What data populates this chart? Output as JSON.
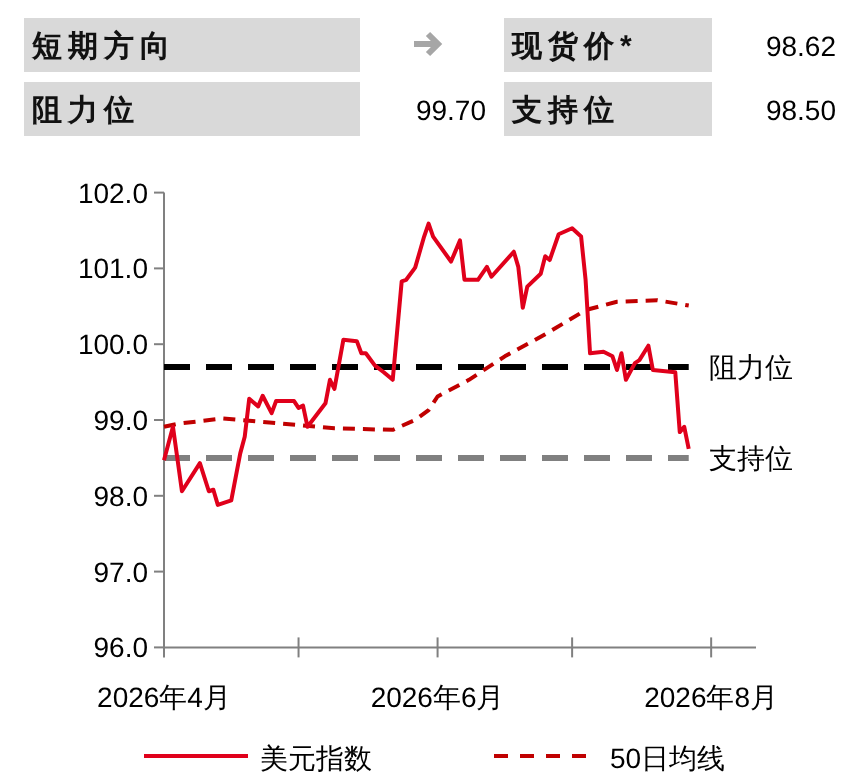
{
  "chart_data": [
    {
      "type": "other",
      "annotations": [
        "短期方向",
        "现货价*",
        "98.62",
        "阻力位",
        "99.70",
        "支持位",
        "98.50"
      ]
    },
    {
      "type": "line",
      "xlim": [
        "2026-04-01",
        "2026-08-11"
      ],
      "ylim": [
        96,
        102
      ],
      "yticks": [
        {
          "value": 96,
          "label": "96.0"
        },
        {
          "value": 97,
          "label": "97.0"
        },
        {
          "value": 98,
          "label": "98.0"
        },
        {
          "value": 99,
          "label": "99.0"
        },
        {
          "value": 100,
          "label": "100.0"
        },
        {
          "value": 101,
          "label": "101.0"
        },
        {
          "value": 102,
          "label": "102.0"
        }
      ],
      "xticks": [
        {
          "value": "2026-04-01",
          "label": "2026年4月"
        },
        {
          "value": "2026-05-01",
          "label": null
        },
        {
          "value": "2026-06-01",
          "label": "2026年6月"
        },
        {
          "value": "2026-07-01",
          "label": null
        },
        {
          "value": "2026-08-01",
          "label": "2026年8月"
        }
      ],
      "grid": false,
      "legend": "bottom",
      "ref_lines": [
        {
          "axis": "y",
          "value": 99.7,
          "label": "阻力位",
          "color": "#000000",
          "line_style": "dashed"
        },
        {
          "axis": "y",
          "value": 98.5,
          "label": "支持位",
          "color": "#808080",
          "line_style": "dashed"
        }
      ],
      "series": [
        {
          "name": "美元指数",
          "color": "#e0001b",
          "line_style": "solid",
          "x": [
            "2026-04-01",
            "2026-04-03",
            "2026-04-05",
            "2026-04-09",
            "2026-04-11",
            "2026-04-12",
            "2026-04-13",
            "2026-04-16",
            "2026-04-18",
            "2026-04-19",
            "2026-04-20",
            "2026-04-22",
            "2026-04-23",
            "2026-04-25",
            "2026-04-26",
            "2026-04-30",
            "2026-05-01",
            "2026-05-02",
            "2026-05-03",
            "2026-05-07",
            "2026-05-08",
            "2026-05-09",
            "2026-05-11",
            "2026-05-14",
            "2026-05-15",
            "2026-05-16",
            "2026-05-18",
            "2026-05-20",
            "2026-05-22",
            "2026-05-24",
            "2026-05-25",
            "2026-05-27",
            "2026-05-29",
            "2026-05-30",
            "2026-05-31",
            "2026-06-04",
            "2026-06-06",
            "2026-06-07",
            "2026-06-10",
            "2026-06-12",
            "2026-06-13",
            "2026-06-18",
            "2026-06-19",
            "2026-06-20",
            "2026-06-21",
            "2026-06-24",
            "2026-06-25",
            "2026-06-26",
            "2026-06-28",
            "2026-07-01",
            "2026-07-03",
            "2026-07-04",
            "2026-07-05",
            "2026-07-08",
            "2026-07-10",
            "2026-07-11",
            "2026-07-12",
            "2026-07-13",
            "2026-07-15",
            "2026-07-16",
            "2026-07-18",
            "2026-07-19",
            "2026-07-24",
            "2026-07-25",
            "2026-07-26",
            "2026-07-27"
          ],
          "values": [
            98.47,
            98.91,
            98.06,
            98.43,
            98.06,
            98.08,
            97.88,
            97.94,
            98.56,
            98.78,
            99.28,
            99.18,
            99.32,
            99.09,
            99.25,
            99.25,
            99.16,
            99.19,
            98.91,
            99.22,
            99.53,
            99.41,
            100.06,
            100.04,
            99.88,
            99.88,
            99.72,
            99.63,
            99.53,
            100.83,
            100.85,
            101.01,
            101.42,
            101.59,
            101.42,
            101.09,
            101.37,
            100.85,
            100.85,
            101.02,
            100.89,
            101.22,
            101.02,
            100.48,
            100.76,
            100.93,
            101.16,
            101.11,
            101.45,
            101.53,
            101.42,
            100.85,
            99.88,
            99.9,
            99.84,
            99.66,
            99.88,
            99.53,
            99.75,
            99.79,
            99.98,
            99.66,
            99.63,
            98.84,
            98.91,
            98.62
          ]
        },
        {
          "name": "50日均线",
          "color": "#c00000",
          "line_style": "dashed",
          "x": [
            "2026-04-01",
            "2026-04-04",
            "2026-04-14",
            "2026-04-26",
            "2026-05-09",
            "2026-05-22",
            "2026-05-27",
            "2026-05-30",
            "2026-06-01",
            "2026-06-08",
            "2026-06-16",
            "2026-06-25",
            "2026-07-04",
            "2026-07-11",
            "2026-07-20",
            "2026-07-27"
          ],
          "values": [
            98.91,
            98.95,
            99.02,
            98.96,
            98.89,
            98.87,
            99.0,
            99.13,
            99.31,
            99.53,
            99.84,
            100.13,
            100.45,
            100.56,
            100.58,
            100.51
          ]
        }
      ]
    }
  ]
}
